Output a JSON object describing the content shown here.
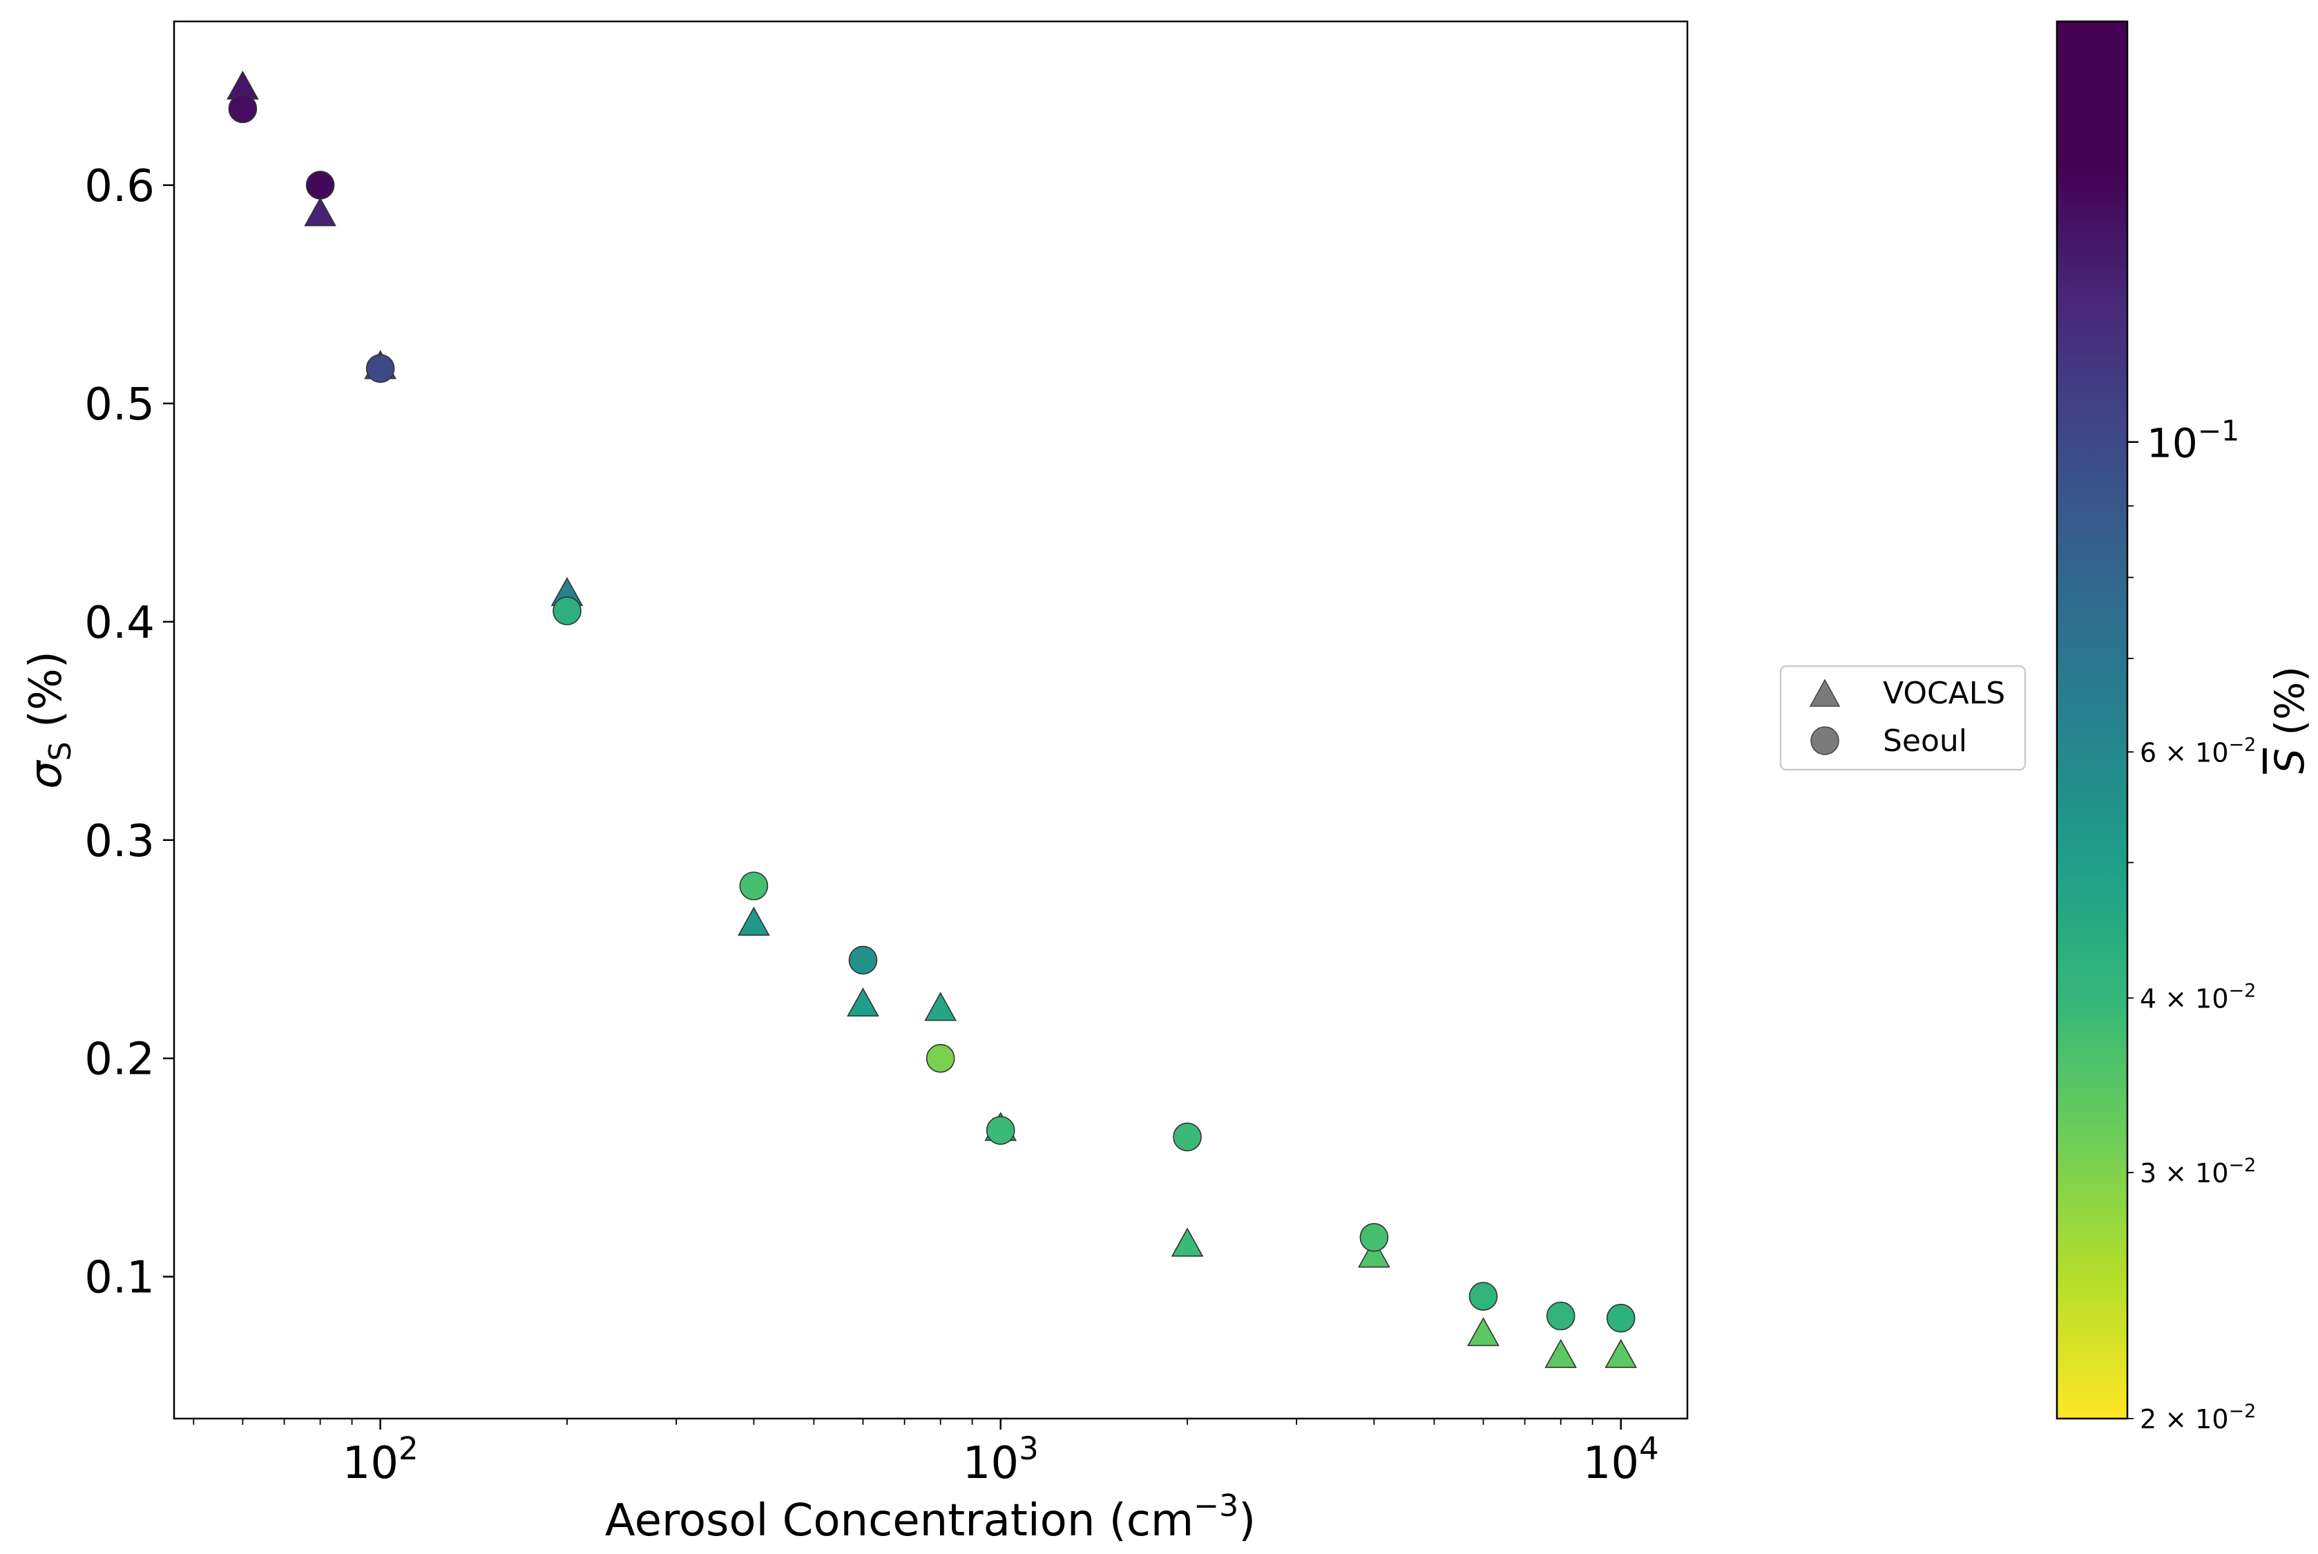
{
  "chart_data": {
    "type": "scatter",
    "xlabel_base": "Aerosol Concentration (cm",
    "xlabel_sup": "−3",
    "xlabel_end": ")",
    "ylabel_sym": "σ",
    "ylabel_sub": "S",
    "ylabel_unit": " (%)",
    "xscale": "log",
    "xlim": [
      46.5,
      12800
    ],
    "ylim": [
      0.035,
      0.675
    ],
    "grid": false,
    "x_ticks": [
      {
        "value": 100,
        "base": "10",
        "exp": "2"
      },
      {
        "value": 1000,
        "base": "10",
        "exp": "3"
      },
      {
        "value": 10000,
        "base": "10",
        "exp": "4"
      }
    ],
    "y_ticks": [
      {
        "value": 0.1,
        "label": "0.1"
      },
      {
        "value": 0.2,
        "label": "0.2"
      },
      {
        "value": 0.3,
        "label": "0.3"
      },
      {
        "value": 0.4,
        "label": "0.4"
      },
      {
        "value": 0.5,
        "label": "0.5"
      },
      {
        "value": 0.6,
        "label": "0.6"
      }
    ],
    "legend": {
      "placement": "right",
      "entries": [
        {
          "label": "VOCALS",
          "marker": "triangle"
        },
        {
          "label": "Seoul",
          "marker": "circle"
        }
      ]
    },
    "colorbar": {
      "colormap": "viridis_r",
      "scale": "log",
      "label_sym": "S",
      "label_unit": " (%)",
      "range": [
        0.02,
        0.2
      ],
      "ticks": [
        {
          "value": 0.1,
          "label_base": "10",
          "label_exp": "−1",
          "major": true
        },
        {
          "value": 0.06,
          "label_base": "6 × 10",
          "label_exp": "−2",
          "major": false
        },
        {
          "value": 0.04,
          "label_base": "4 × 10",
          "label_exp": "−2",
          "major": false
        },
        {
          "value": 0.03,
          "label_base": "3 × 10",
          "label_exp": "−2",
          "major": false
        },
        {
          "value": 0.02,
          "label_base": "2 × 10",
          "label_exp": "−2",
          "major": false
        }
      ],
      "unlabeled_ticks": [
        0.05,
        0.07,
        0.08,
        0.09
      ]
    },
    "series": [
      {
        "name": "VOCALS",
        "marker": "triangle",
        "points": [
          {
            "x": 60,
            "y": 0.645,
            "s": 0.175
          },
          {
            "x": 80,
            "y": 0.587,
            "s": 0.16
          },
          {
            "x": 100,
            "y": 0.517,
            "s": 0.125
          },
          {
            "x": 200,
            "y": 0.413,
            "s": 0.072
          },
          {
            "x": 400,
            "y": 0.262,
            "s": 0.058
          },
          {
            "x": 600,
            "y": 0.225,
            "s": 0.055
          },
          {
            "x": 800,
            "y": 0.223,
            "s": 0.052
          },
          {
            "x": 1000,
            "y": 0.168,
            "s": 0.045
          },
          {
            "x": 2000,
            "y": 0.115,
            "s": 0.042
          },
          {
            "x": 4000,
            "y": 0.11,
            "s": 0.038
          },
          {
            "x": 6000,
            "y": 0.074,
            "s": 0.036
          },
          {
            "x": 8000,
            "y": 0.064,
            "s": 0.036
          },
          {
            "x": 10000,
            "y": 0.064,
            "s": 0.036
          }
        ]
      },
      {
        "name": "Seoul",
        "marker": "circle",
        "points": [
          {
            "x": 60,
            "y": 0.635,
            "s": 0.185
          },
          {
            "x": 80,
            "y": 0.6,
            "s": 0.19
          },
          {
            "x": 100,
            "y": 0.516,
            "s": 0.12
          },
          {
            "x": 200,
            "y": 0.405,
            "s": 0.047
          },
          {
            "x": 400,
            "y": 0.279,
            "s": 0.04
          },
          {
            "x": 600,
            "y": 0.245,
            "s": 0.062
          },
          {
            "x": 800,
            "y": 0.2,
            "s": 0.032
          },
          {
            "x": 1000,
            "y": 0.167,
            "s": 0.042
          },
          {
            "x": 2000,
            "y": 0.164,
            "s": 0.042
          },
          {
            "x": 4000,
            "y": 0.118,
            "s": 0.04
          },
          {
            "x": 6000,
            "y": 0.091,
            "s": 0.045
          },
          {
            "x": 8000,
            "y": 0.082,
            "s": 0.045
          },
          {
            "x": 10000,
            "y": 0.081,
            "s": 0.046
          }
        ]
      }
    ]
  }
}
